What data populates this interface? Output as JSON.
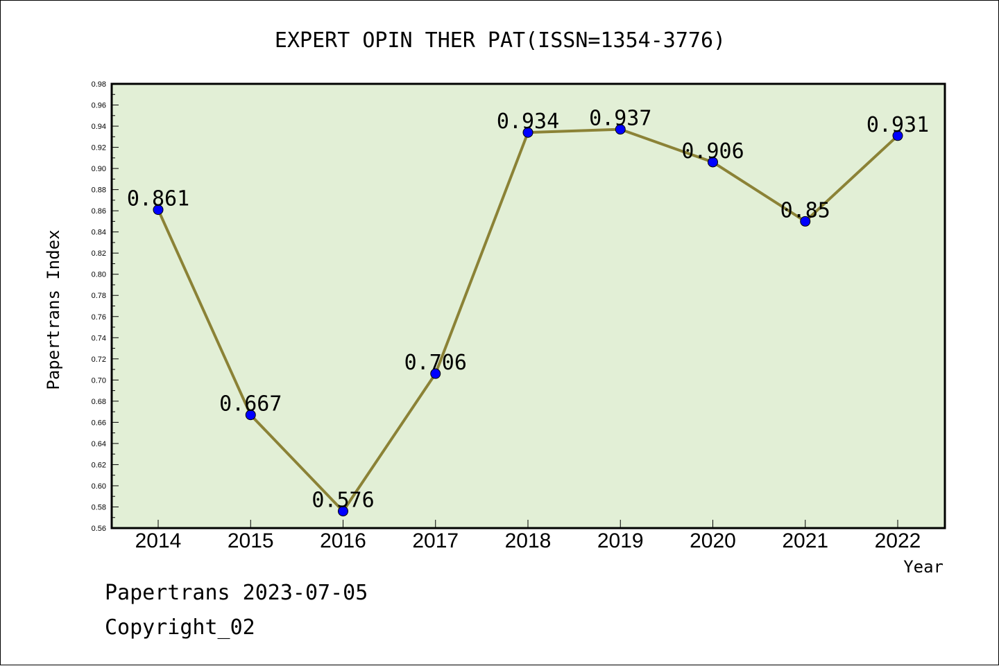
{
  "title": "EXPERT OPIN THER PAT(ISSN=1354-3776)",
  "chart_data": {
    "type": "line",
    "title": "EXPERT OPIN THER PAT(ISSN=1354-3776)",
    "xlabel": "Year",
    "ylabel": "Papertrans Index",
    "categories": [
      "2014",
      "2015",
      "2016",
      "2017",
      "2018",
      "2019",
      "2020",
      "2021",
      "2022"
    ],
    "values": [
      0.861,
      0.667,
      0.576,
      0.706,
      0.934,
      0.937,
      0.906,
      0.85,
      0.931
    ],
    "data_labels": [
      "0.861",
      "0.667",
      "0.576",
      "0.706",
      "0.934",
      "0.937",
      "0.906",
      "0.85",
      "0.931"
    ],
    "ylim": [
      0.56,
      0.98
    ],
    "y_ticks": [
      "0.56",
      "0.58",
      "0.60",
      "0.62",
      "0.64",
      "0.66",
      "0.68",
      "0.70",
      "0.72",
      "0.74",
      "0.76",
      "0.78",
      "0.80",
      "0.82",
      "0.84",
      "0.86",
      "0.88",
      "0.90",
      "0.92",
      "0.94",
      "0.96",
      "0.98"
    ],
    "grid": false,
    "colors": {
      "plot_background": "#e2efd6",
      "line": "#8b8236",
      "marker": "#0000ff"
    }
  },
  "footer": {
    "line1": "Papertrans 2023-07-05",
    "line2": "Copyright_02"
  }
}
